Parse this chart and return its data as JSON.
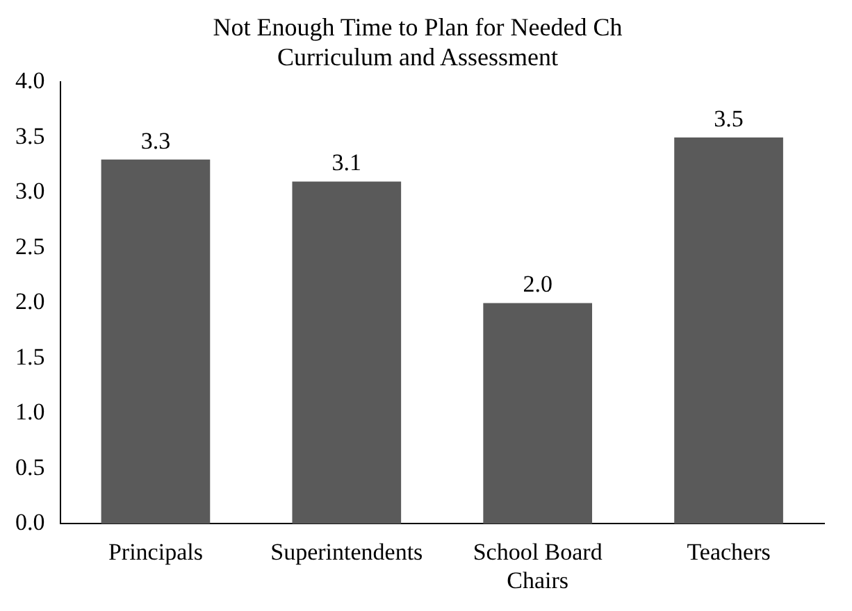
{
  "chart_data": {
    "type": "bar",
    "title": "Not Enough Time to Plan for Needed Ch\nCurriculum and Assessment",
    "categories": [
      "Principals",
      "Superintendents",
      "School Board Chairs",
      "Teachers"
    ],
    "values": [
      3.3,
      3.1,
      2.0,
      3.5
    ],
    "color": "#5a5a5a",
    "ylim": [
      0,
      4
    ],
    "yticks": [
      {
        "value": 0,
        "label": "0.0"
      },
      {
        "value": 0.5,
        "label": "0.5"
      },
      {
        "value": 1,
        "label": "1.0"
      },
      {
        "value": 1.5,
        "label": "1.5"
      },
      {
        "value": 2,
        "label": "2.0"
      },
      {
        "value": 2.5,
        "label": "2.5"
      },
      {
        "value": 3,
        "label": "3.0"
      },
      {
        "value": 3.5,
        "label": "3.5"
      },
      {
        "value": 4,
        "label": "4.0"
      }
    ],
    "value_labels": [
      "3.3",
      "3.1",
      "2.0",
      "3.5"
    ],
    "grid": false,
    "legend": false
  }
}
